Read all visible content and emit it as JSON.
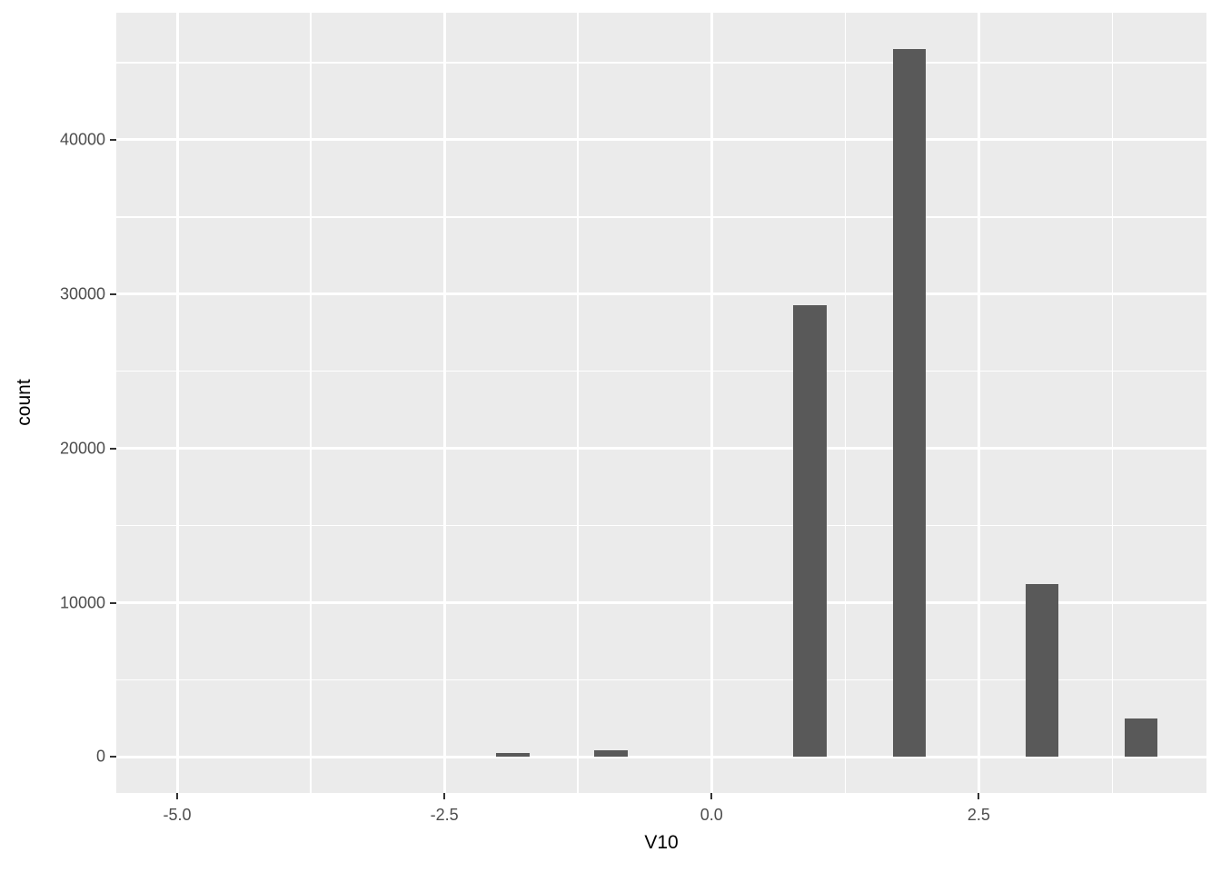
{
  "chart_data": {
    "type": "bar",
    "subtype": "histogram",
    "title": "",
    "xlabel": "V10",
    "ylabel": "count",
    "x_range": [
      -5.57,
      4.63
    ],
    "y_range": [
      -2330,
      48230
    ],
    "x_ticks": [
      -5.0,
      -2.5,
      0.0,
      2.5
    ],
    "x_tick_labels": [
      "-5.0",
      "-2.5",
      "0.0",
      "2.5"
    ],
    "x_minor_ticks": [
      -3.75,
      -1.25,
      1.25,
      3.75
    ],
    "y_ticks": [
      0,
      10000,
      20000,
      30000,
      40000
    ],
    "y_tick_labels": [
      "0",
      "10000",
      "20000",
      "30000",
      "40000"
    ],
    "y_minor_ticks": [
      5000,
      15000,
      25000,
      35000,
      45000
    ],
    "binwidth": 0.31,
    "bars": [
      {
        "x": -1.86,
        "count": 250
      },
      {
        "x": -0.94,
        "count": 430
      },
      {
        "x": 0.92,
        "count": 29300
      },
      {
        "x": 1.85,
        "count": 45900
      },
      {
        "x": 3.09,
        "count": 11200
      },
      {
        "x": 4.02,
        "count": 2500
      }
    ],
    "grid": true,
    "legend": "none",
    "colors": {
      "panel_background": "#EBEBEB",
      "figure_background": "#FFFFFF",
      "gridline": "#FFFFFF",
      "bar_fill": "#595959",
      "axis_text": "#4D4D4D",
      "axis_title": "#000000",
      "tick_mark": "#333333"
    }
  }
}
